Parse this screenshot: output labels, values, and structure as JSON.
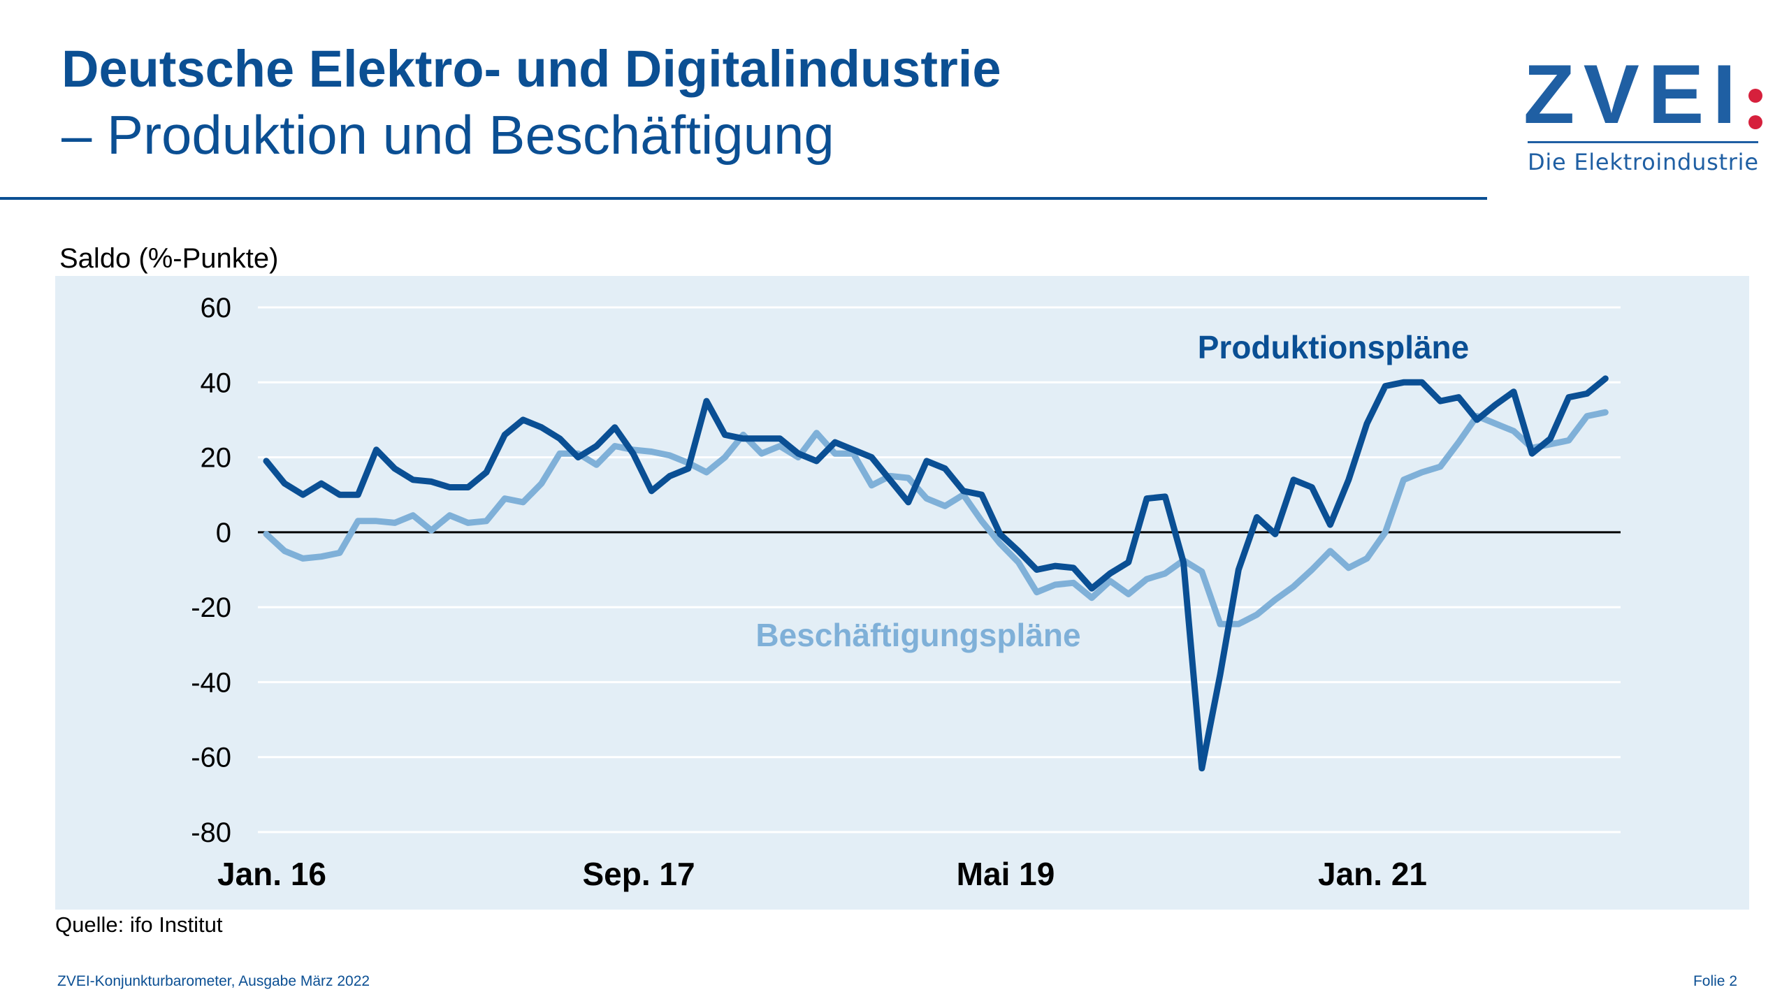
{
  "header": {
    "title": "Deutsche Elektro- und Digitalindustrie",
    "subtitle": "– Produktion und Beschäftigung"
  },
  "logo": {
    "text": "ZVEI:",
    "tagline": "Die Elektroindustrie",
    "color": "#1f5fa3",
    "dot_color": "#d6203c"
  },
  "footer": {
    "source": "Quelle: ifo Institut",
    "publication": "ZVEI-Konjunkturbarometer, Ausgabe März 2022",
    "slide": "Folie 2"
  },
  "chart_data": {
    "type": "line",
    "title": "",
    "ylabel": "Saldo (%-Punkte)",
    "xlabel": "",
    "ylim": [
      -80,
      60
    ],
    "yticks": [
      "60",
      "40",
      "20",
      "0",
      "-20",
      "-40",
      "-60",
      "-80"
    ],
    "ytick_values": [
      60,
      40,
      20,
      0,
      -20,
      -40,
      -60,
      -80
    ],
    "xticks": [
      {
        "label": "Jan. 16",
        "index": 0
      },
      {
        "label": "Sep. 17",
        "index": 20
      },
      {
        "label": "Mai 19",
        "index": 40
      },
      {
        "label": "Jan. 21",
        "index": 60
      }
    ],
    "x_period": "monthly, Jan. 16 – Feb. 22",
    "grid": true,
    "background": "#e3eef6",
    "series": [
      {
        "name": "Produktionspläne",
        "color": "#0a4f94",
        "values": [
          19,
          13,
          10,
          13,
          10,
          10,
          22,
          17,
          14,
          13.5,
          12,
          12,
          16,
          26,
          30,
          28,
          25,
          20,
          23,
          28,
          21,
          11,
          15,
          17,
          35,
          26,
          25,
          25,
          25,
          21,
          19,
          24,
          22,
          20,
          14,
          8,
          19,
          17,
          11,
          10,
          -0.5,
          -5,
          -10,
          -9,
          -9.5,
          -15,
          -11,
          -8,
          9,
          9.5,
          -8,
          -63,
          -38,
          -10,
          4,
          -0.5,
          14,
          12,
          2,
          14,
          29,
          39,
          40,
          40,
          35,
          36,
          30,
          34,
          37.5,
          21,
          25,
          36,
          37,
          41
        ]
      },
      {
        "name": "Beschäftigungspläne",
        "color": "#7fb0d8",
        "values": [
          -0.5,
          -5,
          -7,
          -6.5,
          -5.5,
          3,
          3,
          2.5,
          4.5,
          0.5,
          4.5,
          2.5,
          3,
          9,
          8,
          13,
          21,
          21,
          18,
          23,
          22,
          21.5,
          20.5,
          18.5,
          16,
          20,
          26,
          21,
          23,
          20,
          26.5,
          21,
          21,
          12.5,
          15,
          14.5,
          9,
          7,
          10,
          3,
          -3,
          -8,
          -16,
          -14,
          -13.5,
          -17.5,
          -13,
          -16.5,
          -12.5,
          -11,
          -7.5,
          -10.5,
          -24.5,
          -24.5,
          -22,
          -18,
          -14.5,
          -10,
          -5,
          -9.5,
          -7,
          0,
          14,
          16,
          17.5,
          24,
          31,
          29,
          27,
          22.5,
          23.5,
          24.5,
          31,
          32
        ]
      }
    ]
  }
}
